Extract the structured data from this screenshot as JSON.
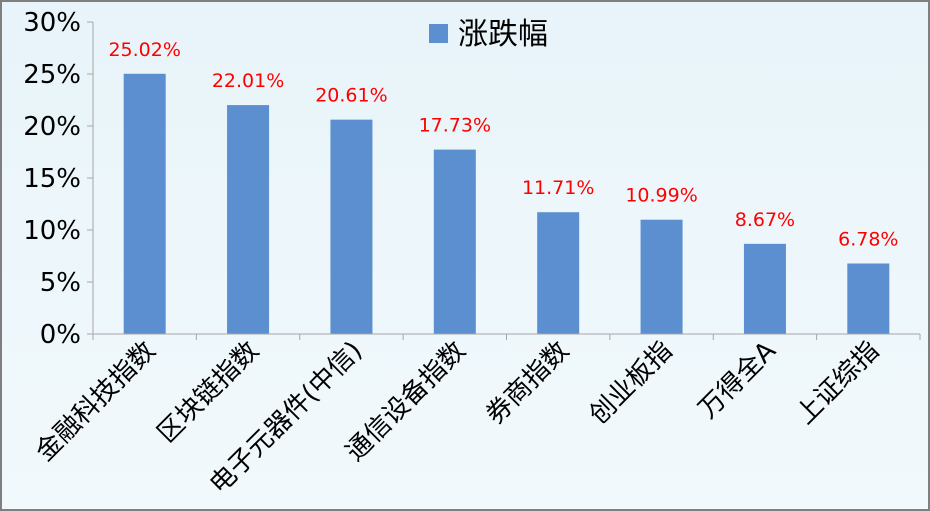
{
  "chart_data": {
    "type": "bar",
    "categories": [
      "金融科技指数",
      "区块链指数",
      "电子元器件(中信)",
      "通信设备指数",
      "券商指数",
      "创业板指",
      "万得全A",
      "上证综指"
    ],
    "series": [
      {
        "name": "涨跌幅",
        "values": [
          25.02,
          22.01,
          20.61,
          17.73,
          11.71,
          10.99,
          8.67,
          6.78
        ]
      }
    ],
    "data_labels": [
      "25.02%",
      "22.01%",
      "20.61%",
      "17.73%",
      "11.71%",
      "10.99%",
      "8.67%",
      "6.78%"
    ],
    "y_ticks": [
      "0%",
      "5%",
      "10%",
      "15%",
      "20%",
      "25%",
      "30%"
    ],
    "ylim": [
      0,
      30
    ],
    "legend_position": "top-center",
    "grid": false,
    "colors": {
      "bar": "#5b8fd0",
      "data_label": "#ff0000",
      "axis": "#a6a6a6"
    }
  }
}
